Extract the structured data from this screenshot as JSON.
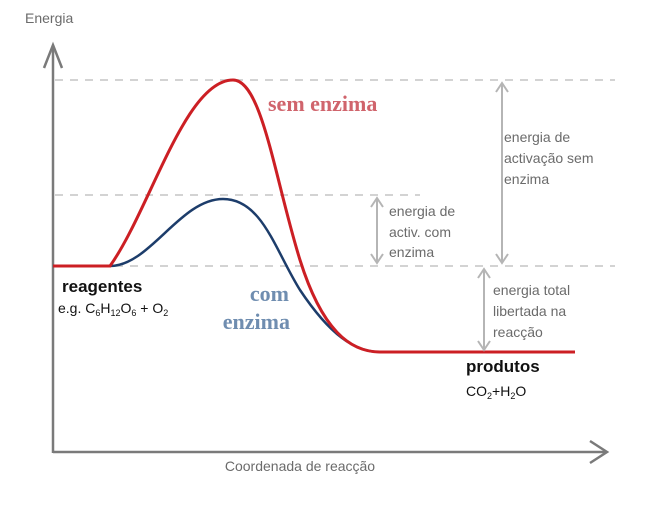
{
  "axes": {
    "y_label": "Energia",
    "x_label": "Coordenada de reacção"
  },
  "curves": {
    "without_enzyme": {
      "label": "sem enzima",
      "color": "#cc1f24",
      "label_color": "#d0646c"
    },
    "with_enzyme": {
      "label_line1": "com",
      "label_line2": "enzima",
      "color": "#1d3d6b",
      "label_color": "#6f8db0"
    }
  },
  "reactants": {
    "title": "reagentes",
    "formula": {
      "prefix": "e.g. C",
      "s1": "6",
      "p2": "H",
      "s2": "12",
      "p3": "O",
      "s3": "6",
      "p4": " + O",
      "s4": "2"
    }
  },
  "products": {
    "title": "produtos",
    "formula": {
      "p1": "CO",
      "s1": "2",
      "p2": "+H",
      "s2": "2",
      "p3": "O"
    }
  },
  "annotations": {
    "activation_without": [
      "energia de",
      "activação sem",
      "enzima"
    ],
    "activation_with": [
      "energia de",
      "activ. com",
      "enzima"
    ],
    "total_released": [
      "energia total",
      "libertada na",
      "reacção"
    ]
  },
  "colors": {
    "axis": "#7a7a7a",
    "dashed": "#d3d3d3",
    "arrow": "#b5b5b5"
  }
}
